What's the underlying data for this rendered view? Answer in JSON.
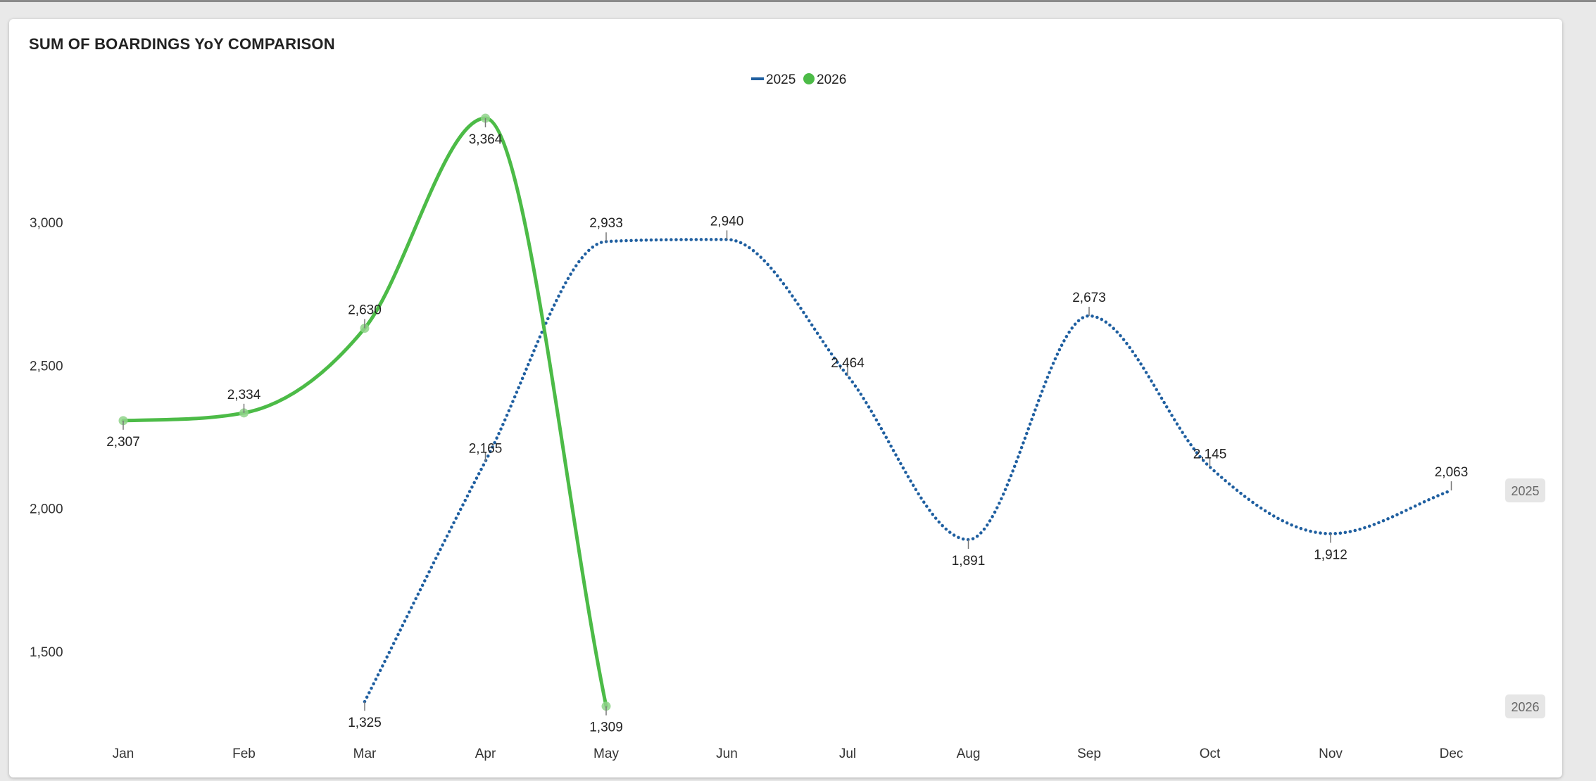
{
  "chart_data": {
    "type": "line",
    "title": "SUM OF BOARDINGS YoY COMPARISON",
    "categories": [
      "Jan",
      "Feb",
      "Mar",
      "Apr",
      "May",
      "Jun",
      "Jul",
      "Aug",
      "Sep",
      "Oct",
      "Nov",
      "Dec"
    ],
    "ylim": [
      1200,
      3450
    ],
    "yticks": [
      1500,
      2000,
      2500,
      3000
    ],
    "ytick_labels": [
      "1,500",
      "2,000",
      "2,500",
      "3,000"
    ],
    "legend_position": "top-center",
    "grid": false,
    "series": [
      {
        "name": "2025",
        "color": "#1f5fa0",
        "style": "dotted",
        "values": [
          null,
          null,
          1325,
          2165,
          2933,
          2940,
          2464,
          1891,
          2673,
          2145,
          1912,
          2063
        ],
        "labels": [
          null,
          null,
          "1,325",
          "2,165",
          "2,933",
          "2,940",
          "2,464",
          "1,891",
          "2,673",
          "2,145",
          "1,912",
          "2,063"
        ],
        "end_tag": "2025"
      },
      {
        "name": "2026",
        "color": "#4cbb47",
        "style": "solid",
        "values": [
          2307,
          2334,
          2630,
          3364,
          1309,
          null,
          null,
          null,
          null,
          null,
          null,
          null
        ],
        "labels": [
          "2,307",
          "2,334",
          "2,630",
          "3,364",
          "1,309",
          null,
          null,
          null,
          null,
          null,
          null,
          null
        ],
        "end_tag": "2026"
      }
    ]
  }
}
